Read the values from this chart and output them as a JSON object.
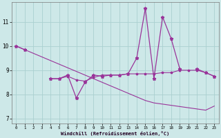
{
  "xlabel": "Windchill (Refroidissement éolien,°C)",
  "background_color": "#cde8e8",
  "grid_color": "#aad0d0",
  "line_color": "#993399",
  "x_hours": [
    0,
    1,
    2,
    3,
    4,
    5,
    6,
    7,
    8,
    9,
    10,
    11,
    12,
    13,
    14,
    15,
    16,
    17,
    18,
    19,
    20,
    21,
    22,
    23
  ],
  "windchill": [
    10.0,
    9.85,
    null,
    null,
    8.65,
    8.65,
    8.8,
    7.85,
    8.5,
    8.8,
    8.75,
    8.8,
    8.8,
    8.85,
    9.5,
    11.55,
    8.65,
    11.2,
    10.3,
    9.05,
    null,
    9.05,
    8.9,
    8.75
  ],
  "flat_ref": [
    null,
    null,
    null,
    null,
    8.65,
    8.65,
    8.75,
    8.6,
    8.55,
    8.7,
    8.8,
    8.8,
    8.8,
    8.85,
    8.85,
    8.85,
    8.85,
    8.9,
    8.9,
    9.0,
    9.0,
    9.0,
    8.9,
    8.75
  ],
  "trend": [
    10.0,
    9.85,
    9.7,
    9.55,
    9.4,
    9.25,
    9.1,
    8.95,
    8.8,
    8.65,
    8.5,
    8.35,
    8.2,
    8.05,
    7.9,
    7.75,
    7.65,
    7.6,
    7.55,
    7.5,
    7.45,
    7.4,
    7.35,
    7.52
  ],
  "ylim": [
    6.8,
    11.8
  ],
  "yticks": [
    7,
    8,
    9,
    10,
    11
  ],
  "xticks": [
    0,
    1,
    2,
    3,
    4,
    5,
    6,
    7,
    8,
    9,
    10,
    11,
    12,
    13,
    14,
    15,
    16,
    17,
    18,
    19,
    20,
    21,
    22,
    23
  ]
}
